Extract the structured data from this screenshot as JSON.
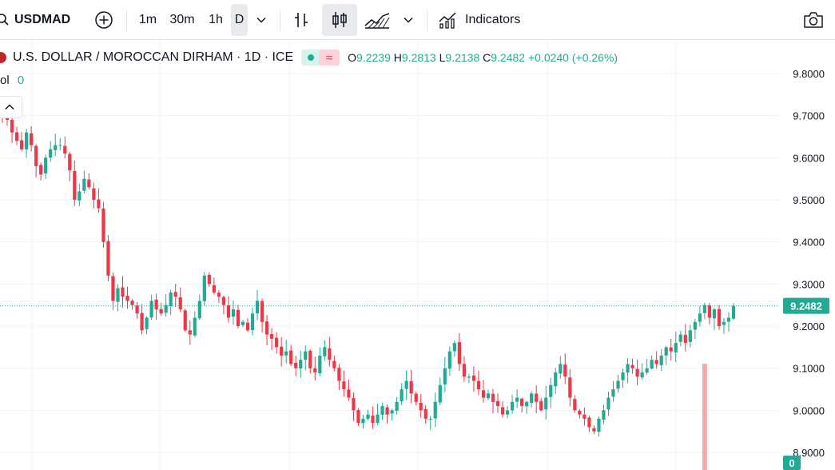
{
  "toolbar": {
    "symbol": "USDMAD",
    "intervals": [
      "1m",
      "30m",
      "1h",
      "D"
    ],
    "selected_interval": "D",
    "indicators_label": "Indicators"
  },
  "legend": {
    "title": "U.S. DOLLAR / MOROCCAN DIRHAM · 1D · ICE",
    "vol_label": "ol",
    "vol_value": "0",
    "o_label": "O",
    "o": "9.2239",
    "h_label": "H",
    "h": "9.2813",
    "l_label": "L",
    "l": "9.2138",
    "c_label": "C",
    "c": "9.2482",
    "change": "+0.0240 (+0.26%)"
  },
  "colors": {
    "up": "#22ab94",
    "down": "#f23645",
    "volume": "#f7a9a7",
    "grid": "#f0f3fa"
  },
  "price_scale": {
    "ticks": [
      "9.8000",
      "9.7000",
      "9.6000",
      "9.5000",
      "9.4000",
      "9.3000",
      "9.2000",
      "9.1000",
      "9.0000",
      "8.9000"
    ],
    "last_price": "9.2482",
    "volume_badge": "0"
  },
  "chart_data": {
    "type": "candlestick",
    "ylim": [
      8.88,
      9.82
    ],
    "last": 9.2482,
    "closes": [
      9.7,
      9.69,
      9.66,
      9.64,
      9.62,
      9.66,
      9.63,
      9.58,
      9.56,
      9.6,
      9.62,
      9.63,
      9.63,
      9.61,
      9.57,
      9.5,
      9.52,
      9.55,
      9.53,
      9.5,
      9.48,
      9.4,
      9.32,
      9.26,
      9.29,
      9.27,
      9.26,
      9.25,
      9.23,
      9.19,
      9.22,
      9.26,
      9.24,
      9.23,
      9.25,
      9.28,
      9.27,
      9.24,
      9.19,
      9.18,
      9.22,
      9.26,
      9.32,
      9.3,
      9.28,
      9.27,
      9.25,
      9.22,
      9.24,
      9.2,
      9.21,
      9.19,
      9.23,
      9.26,
      9.21,
      9.18,
      9.17,
      9.15,
      9.13,
      9.14,
      9.11,
      9.1,
      9.12,
      9.14,
      9.1,
      9.09,
      9.13,
      9.15,
      9.12,
      9.1,
      9.07,
      9.05,
      9.03,
      9.0,
      8.97,
      8.98,
      8.99,
      8.97,
      8.99,
      9.01,
      8.99,
      9.0,
      9.02,
      9.05,
      9.07,
      9.04,
      9.02,
      9.0,
      8.98,
      8.98,
      9.02,
      9.06,
      9.1,
      9.14,
      9.16,
      9.11,
      9.08,
      9.08,
      9.07,
      9.05,
      9.03,
      9.04,
      9.02,
      9.01,
      8.99,
      9.0,
      9.02,
      9.03,
      9.01,
      9.02,
      9.04,
      9.02,
      9.0,
      9.03,
      9.06,
      9.09,
      9.11,
      9.08,
      9.03,
      9.0,
      8.99,
      8.98,
      8.96,
      8.95,
      8.98,
      9.0,
      9.03,
      9.05,
      9.07,
      9.09,
      9.11,
      9.1,
      9.08,
      9.09,
      9.1,
      9.12,
      9.11,
      9.13,
      9.15,
      9.14,
      9.16,
      9.18,
      9.16,
      9.19,
      9.21,
      9.23,
      9.25,
      9.22,
      9.24,
      9.2,
      9.21,
      9.22,
      9.2482
    ],
    "volume_last": 0
  }
}
